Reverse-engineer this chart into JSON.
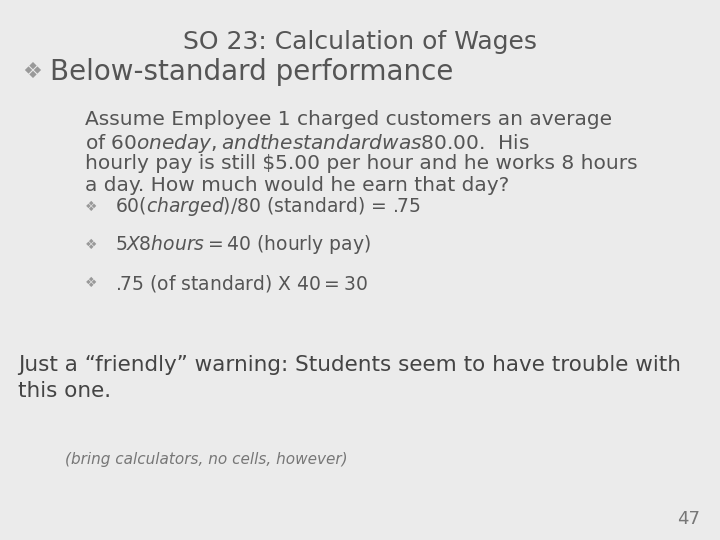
{
  "title": "SO 23: Calculation of Wages",
  "background_color": "#ebebeb",
  "title_fontsize": 18,
  "title_color": "#555555",
  "bullet1": "Below-standard performance",
  "bullet1_fontsize": 20,
  "bullet1_color": "#555555",
  "para_lines": [
    "Assume Employee 1 charged customers an average",
    "of $60 one day, and the standard was $80.00.  His",
    "hourly pay is still $5.00 per hour and he works 8 hours",
    "a day. How much would he earn that day?"
  ],
  "para_fontsize": 14.5,
  "para_color": "#555555",
  "sub_bullets": [
    "$60 (charged)/$80 (standard) = .75",
    "$5 X 8 hours = $40 (hourly pay)",
    ".75 (of standard) X $40 = $30"
  ],
  "sub_bullet_fontsize": 13.5,
  "sub_bullet_color": "#555555",
  "warning_lines": [
    "Just a “friendly” warning: Students seem to have trouble with",
    "this one."
  ],
  "warning_fontsize": 15.5,
  "warning_color": "#444444",
  "note_text": "(bring calculators, no cells, however)",
  "note_fontsize": 11,
  "note_color": "#777777",
  "page_number": "47",
  "page_fontsize": 13,
  "page_color": "#777777",
  "diamond": "❖",
  "diamond_color": "#999999"
}
